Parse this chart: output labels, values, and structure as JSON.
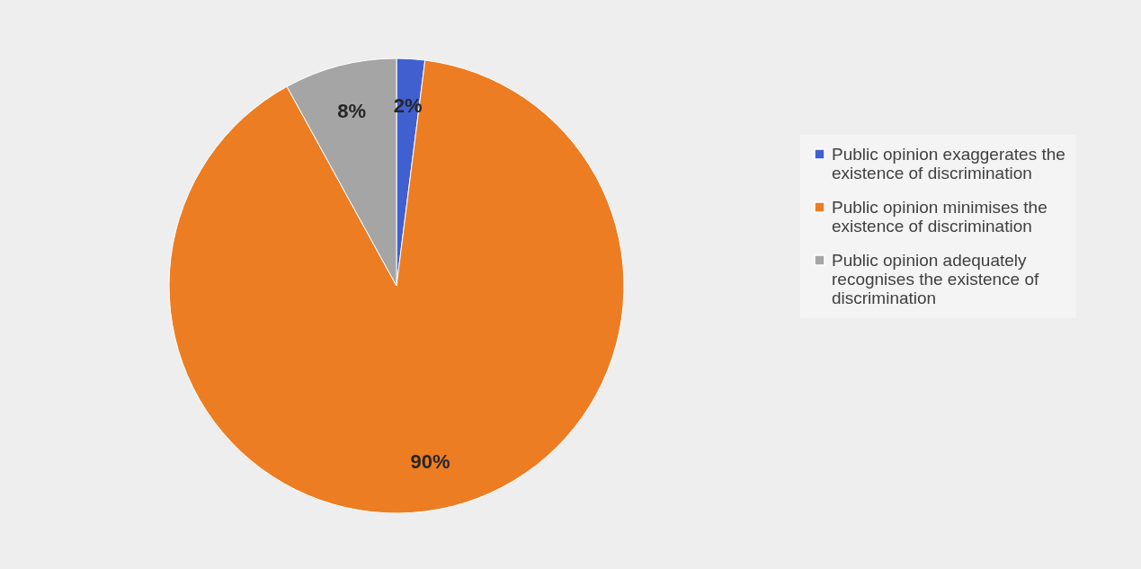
{
  "chart_data": {
    "type": "pie",
    "categories": [
      "Public opinion exaggerates the existence of discrimination",
      "Public opinion minimises the existence of discrimination",
      "Public opinion adequately recognises the existence of discrimination"
    ],
    "values": [
      2,
      90,
      8
    ],
    "colors": [
      "#4060d0",
      "#ed7d22",
      "#a5a5a5"
    ],
    "value_labels": [
      "2%",
      "90%",
      "8%"
    ],
    "legend": "right"
  }
}
